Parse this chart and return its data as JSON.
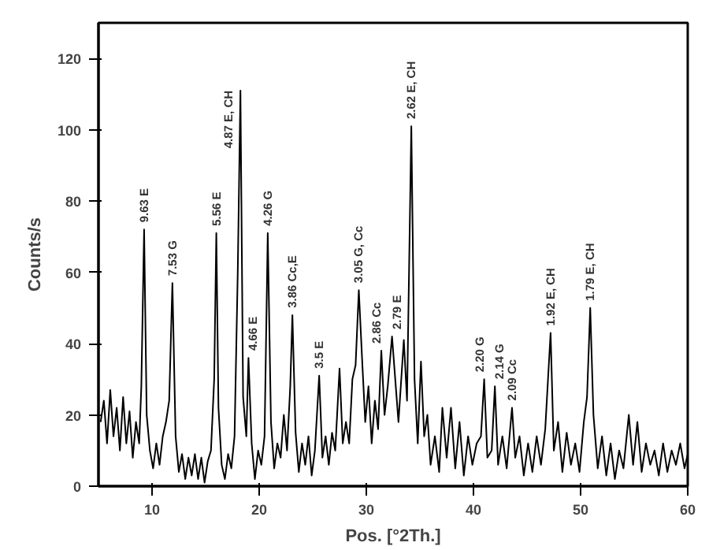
{
  "chart_data": {
    "type": "line",
    "xlabel": "Pos. [°2Th.]",
    "ylabel": "Counts/s",
    "color": "#000000",
    "x": [
      5.2,
      5.5,
      5.8,
      6.1,
      6.4,
      6.7,
      7.0,
      7.3,
      7.6,
      7.9,
      8.2,
      8.5,
      8.8,
      9.0,
      9.26,
      9.5,
      9.8,
      10.1,
      10.4,
      10.7,
      11.0,
      11.3,
      11.6,
      11.9,
      12.2,
      12.5,
      12.8,
      13.1,
      13.4,
      13.7,
      14.0,
      14.3,
      14.6,
      14.9,
      15.2,
      15.5,
      15.8,
      16.0,
      16.2,
      16.5,
      16.8,
      17.1,
      17.4,
      17.7,
      18.0,
      18.25,
      18.5,
      18.8,
      19.0,
      19.3,
      19.6,
      19.9,
      20.2,
      20.5,
      20.8,
      21.1,
      21.4,
      21.7,
      22.0,
      22.3,
      22.6,
      22.9,
      23.1,
      23.4,
      23.7,
      24.0,
      24.3,
      24.6,
      24.9,
      25.2,
      25.6,
      25.9,
      26.2,
      26.5,
      26.8,
      27.1,
      27.5,
      27.8,
      28.1,
      28.4,
      28.7,
      29.0,
      29.3,
      29.6,
      29.9,
      30.2,
      30.5,
      30.8,
      31.1,
      31.4,
      31.7,
      32.0,
      32.4,
      32.7,
      33.0,
      33.5,
      33.8,
      34.2,
      34.5,
      34.8,
      35.1,
      35.4,
      35.7,
      36.0,
      36.4,
      36.8,
      37.1,
      37.5,
      37.9,
      38.3,
      38.7,
      39.1,
      39.5,
      39.9,
      40.3,
      40.7,
      41.0,
      41.3,
      41.7,
      42.0,
      42.3,
      42.7,
      43.1,
      43.6,
      43.9,
      44.3,
      44.7,
      45.1,
      45.5,
      45.9,
      46.3,
      46.7,
      47.2,
      47.5,
      47.9,
      48.3,
      48.7,
      49.1,
      49.5,
      49.9,
      50.3,
      50.6,
      50.9,
      51.2,
      51.6,
      52.0,
      52.4,
      52.8,
      53.2,
      53.6,
      54.0,
      54.5,
      54.9,
      55.3,
      55.7,
      56.1,
      56.5,
      56.9,
      57.3,
      57.7,
      58.1,
      58.5,
      58.9,
      59.3,
      59.7,
      60.0
    ],
    "values": [
      18,
      24,
      12,
      27,
      14,
      22,
      10,
      25,
      12,
      21,
      8,
      18,
      12,
      28,
      72,
      20,
      10,
      5,
      12,
      6,
      14,
      18,
      24,
      57,
      14,
      4,
      9,
      2,
      8,
      3,
      9,
      2,
      8,
      1,
      7,
      10,
      30,
      71,
      22,
      6,
      2,
      9,
      5,
      14,
      60,
      111,
      25,
      14,
      36,
      12,
      2,
      10,
      6,
      14,
      71,
      18,
      5,
      12,
      8,
      20,
      10,
      28,
      48,
      15,
      4,
      12,
      6,
      14,
      3,
      10,
      31,
      8,
      14,
      6,
      15,
      10,
      33,
      12,
      18,
      12,
      30,
      34,
      55,
      36,
      18,
      28,
      12,
      24,
      16,
      38,
      20,
      28,
      42,
      30,
      18,
      41,
      24,
      101,
      30,
      12,
      35,
      14,
      20,
      6,
      14,
      4,
      22,
      8,
      22,
      5,
      18,
      3,
      14,
      6,
      12,
      14,
      30,
      8,
      10,
      28,
      6,
      14,
      5,
      22,
      8,
      14,
      3,
      12,
      4,
      14,
      6,
      16,
      43,
      10,
      18,
      4,
      15,
      6,
      12,
      4,
      18,
      25,
      50,
      20,
      5,
      14,
      3,
      12,
      2,
      10,
      5,
      20,
      6,
      18,
      4,
      12,
      6,
      10,
      3,
      12,
      4,
      10,
      6,
      12,
      5,
      9
    ],
    "xlim": [
      5,
      60
    ],
    "ylim": [
      0,
      130
    ],
    "xticks": [
      10,
      20,
      30,
      40,
      50,
      60
    ],
    "yticks": [
      0,
      20,
      40,
      60,
      80,
      100,
      120
    ],
    "grid": false,
    "marker": "none",
    "line_style": "solid",
    "annotations": [
      {
        "text": "9.63 E",
        "x": 9.26,
        "y": 72
      },
      {
        "text": "7.53 G",
        "x": 11.9,
        "y": 57
      },
      {
        "text": "5.56 E",
        "x": 16.0,
        "y": 71
      },
      {
        "text": "4.87 E, CH",
        "x": 18.25,
        "y": 111
      },
      {
        "text": "4.66 E",
        "x": 19.0,
        "y": 36
      },
      {
        "text": "4.26 G",
        "x": 20.8,
        "y": 71
      },
      {
        "text": "3.86 Cc,E",
        "x": 23.1,
        "y": 48
      },
      {
        "text": "3.5 E",
        "x": 25.6,
        "y": 31
      },
      {
        "text": "3.05 G, Cc",
        "x": 29.3,
        "y": 55
      },
      {
        "text": "2.86 Cc",
        "x": 31.4,
        "y": 38
      },
      {
        "text": "2.79 E",
        "x": 32.4,
        "y": 42
      },
      {
        "text": "2.62 E, CH",
        "x": 34.2,
        "y": 101
      },
      {
        "text": "2.20 G",
        "x": 41.0,
        "y": 30
      },
      {
        "text": "2.14 G",
        "x": 42.0,
        "y": 28
      },
      {
        "text": "2.09 Cc",
        "x": 43.6,
        "y": 22
      },
      {
        "text": "1.92 E, CH",
        "x": 47.2,
        "y": 43
      },
      {
        "text": "1.79 E, CH",
        "x": 50.9,
        "y": 50
      }
    ]
  }
}
